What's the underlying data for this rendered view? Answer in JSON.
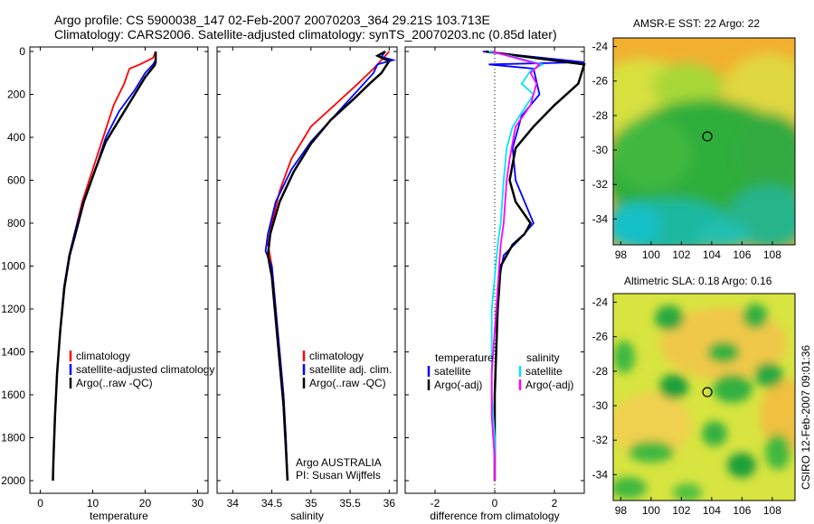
{
  "header": {
    "line1": "Argo profile: CS 5900038_147 02-Feb-2007 20070203_364 29.21S 103.713E",
    "line2": "Climatology: CARS2006. Satellite-adjusted climatology: synTS_20070203.nc (0.85d later)"
  },
  "side_label": "CSIRO 12-Feb-2007 09:01:36",
  "colors": {
    "climatology": "#ff0000",
    "satellite": "#0000ff",
    "argo": "#000000",
    "sal_satellite": "#00e5ff",
    "sal_argo": "#ff00ff",
    "ocean_green": "#22aa33",
    "warm_yellow": "#f0e050"
  },
  "chart_data": [
    {
      "type": "line",
      "xlabel": "temperature",
      "xticks": [
        0,
        10,
        20,
        30
      ],
      "xlim": [
        -2,
        32
      ],
      "ylim": [
        0,
        2050
      ],
      "yticks": [
        0,
        200,
        400,
        600,
        800,
        1000,
        1200,
        1400,
        1600,
        1800,
        2000
      ],
      "legend": [
        "climatology",
        "satellite-adjusted climatology",
        "Argo(..raw -QC)"
      ],
      "series": [
        {
          "name": "climatology",
          "color": "#ff0000",
          "points": [
            [
              22,
              0
            ],
            [
              21.5,
              30
            ],
            [
              19,
              60
            ],
            [
              17,
              80
            ],
            [
              16,
              150
            ],
            [
              14,
              250
            ],
            [
              12,
              400
            ],
            [
              10,
              550
            ],
            [
              8,
              700
            ],
            [
              6.5,
              850
            ],
            [
              5.5,
              950
            ],
            [
              4.5,
              1100
            ],
            [
              3.8,
              1300
            ],
            [
              3.2,
              1500
            ],
            [
              2.8,
              1700
            ],
            [
              2.5,
              1900
            ],
            [
              2.4,
              2000
            ]
          ]
        },
        {
          "name": "satellite-adjusted climatology",
          "color": "#0000ff",
          "points": [
            [
              22,
              0
            ],
            [
              22,
              40
            ],
            [
              21.5,
              60
            ],
            [
              20,
              100
            ],
            [
              18,
              180
            ],
            [
              15,
              280
            ],
            [
              12.5,
              400
            ],
            [
              10.5,
              550
            ],
            [
              8.2,
              700
            ],
            [
              6.5,
              850
            ],
            [
              5.5,
              950
            ],
            [
              4.5,
              1100
            ],
            [
              3.8,
              1300
            ],
            [
              3.2,
              1500
            ],
            [
              2.8,
              1700
            ],
            [
              2.5,
              1900
            ],
            [
              2.4,
              2000
            ]
          ]
        },
        {
          "name": "Argo(..raw -QC)",
          "color": "#000000",
          "points": [
            [
              22,
              0
            ],
            [
              22,
              50
            ],
            [
              21.8,
              65
            ],
            [
              20,
              120
            ],
            [
              18,
              200
            ],
            [
              15.5,
              300
            ],
            [
              12.5,
              420
            ],
            [
              10.5,
              550
            ],
            [
              8.3,
              700
            ],
            [
              6.7,
              850
            ],
            [
              5.6,
              950
            ],
            [
              4.6,
              1100
            ],
            [
              3.8,
              1300
            ],
            [
              3.2,
              1500
            ],
            [
              2.8,
              1700
            ],
            [
              2.5,
              1900
            ],
            [
              2.4,
              2000
            ]
          ]
        }
      ]
    },
    {
      "type": "line",
      "xlabel": "salinity",
      "xticks": [
        34,
        34.5,
        35,
        35.5,
        36
      ],
      "xlim": [
        33.8,
        36.1
      ],
      "ylim": [
        0,
        2050
      ],
      "legend": [
        "climatology",
        "satellite adj. clim.",
        "Argo(..raw -QC)"
      ],
      "annotation": [
        "Argo AUSTRALIA",
        "PI: Susan Wijffels"
      ],
      "series": [
        {
          "name": "climatology",
          "color": "#ff0000",
          "points": [
            [
              36,
              0
            ],
            [
              35.9,
              40
            ],
            [
              35.8,
              80
            ],
            [
              35.6,
              150
            ],
            [
              35.3,
              250
            ],
            [
              35.0,
              350
            ],
            [
              34.75,
              500
            ],
            [
              34.6,
              650
            ],
            [
              34.5,
              800
            ],
            [
              34.45,
              900
            ],
            [
              34.5,
              1000
            ],
            [
              34.55,
              1200
            ],
            [
              34.6,
              1400
            ],
            [
              34.65,
              1600
            ],
            [
              34.68,
              1800
            ],
            [
              34.7,
              2000
            ]
          ]
        },
        {
          "name": "satellite adj. clim.",
          "color": "#0000ff",
          "points": [
            [
              35.95,
              0
            ],
            [
              35.9,
              25
            ],
            [
              36.05,
              40
            ],
            [
              35.85,
              60
            ],
            [
              35.8,
              100
            ],
            [
              35.6,
              180
            ],
            [
              35.3,
              300
            ],
            [
              35.0,
              420
            ],
            [
              34.75,
              550
            ],
            [
              34.55,
              700
            ],
            [
              34.45,
              850
            ],
            [
              34.42,
              930
            ],
            [
              34.5,
              1000
            ],
            [
              34.55,
              1200
            ],
            [
              34.6,
              1400
            ],
            [
              34.65,
              1600
            ],
            [
              34.68,
              1800
            ],
            [
              34.7,
              2000
            ]
          ]
        },
        {
          "name": "Argo(..raw -QC)",
          "color": "#000000",
          "points": [
            [
              35.95,
              0
            ],
            [
              35.85,
              20
            ],
            [
              36.0,
              45
            ],
            [
              35.9,
              100
            ],
            [
              35.75,
              150
            ],
            [
              35.55,
              220
            ],
            [
              35.25,
              320
            ],
            [
              35.0,
              430
            ],
            [
              34.78,
              560
            ],
            [
              34.6,
              700
            ],
            [
              34.48,
              850
            ],
            [
              34.45,
              950
            ],
            [
              34.5,
              1050
            ],
            [
              34.55,
              1250
            ],
            [
              34.6,
              1450
            ],
            [
              34.65,
              1650
            ],
            [
              34.68,
              1850
            ],
            [
              34.7,
              2000
            ]
          ]
        }
      ]
    },
    {
      "type": "line",
      "xlabel": "difference from climatology",
      "xticks": [
        -2,
        0,
        2
      ],
      "xlim": [
        -3,
        3
      ],
      "ylim": [
        0,
        2050
      ],
      "legend_headers": [
        "temperature",
        "salinity"
      ],
      "legend": [
        "satellite",
        "Argo(-adj)",
        "satellite",
        "Argo(-adj)"
      ],
      "series": [
        {
          "name": "satellite",
          "color": "#0000ff",
          "points": [
            [
              -0.4,
              0
            ],
            [
              3,
              50
            ],
            [
              -0.2,
              60
            ],
            [
              1.3,
              80
            ],
            [
              1.5,
              200
            ],
            [
              0.9,
              300
            ],
            [
              0.6,
              450
            ],
            [
              0.7,
              600
            ],
            [
              1.0,
              700
            ],
            [
              1.3,
              800
            ],
            [
              0.8,
              880
            ],
            [
              0.3,
              950
            ],
            [
              0.1,
              1100
            ],
            [
              0.05,
              1400
            ],
            [
              0,
              1600
            ],
            [
              0,
              1800
            ],
            [
              0,
              2000
            ]
          ]
        },
        {
          "name": "Argo(-adj)",
          "color": "#000000",
          "points": [
            [
              -0.3,
              0
            ],
            [
              3,
              60
            ],
            [
              2.8,
              150
            ],
            [
              2.0,
              250
            ],
            [
              1.3,
              350
            ],
            [
              0.7,
              450
            ],
            [
              0.5,
              600
            ],
            [
              0.7,
              700
            ],
            [
              1.2,
              800
            ],
            [
              1.0,
              850
            ],
            [
              0.6,
              900
            ],
            [
              0.2,
              1000
            ],
            [
              0.1,
              1200
            ],
            [
              0.05,
              1400
            ],
            [
              0,
              1600
            ],
            [
              0,
              1800
            ],
            [
              0,
              2000
            ]
          ]
        },
        {
          "name": "satellite",
          "color": "#00e5ff",
          "points": [
            [
              -0.2,
              0
            ],
            [
              0.5,
              20
            ],
            [
              1.6,
              60
            ],
            [
              1.2,
              90
            ],
            [
              0.9,
              150
            ],
            [
              1.3,
              200
            ],
            [
              0.6,
              350
            ],
            [
              0.4,
              450
            ],
            [
              0.3,
              600
            ],
            [
              0.2,
              800
            ],
            [
              0.1,
              900
            ],
            [
              -0.1,
              1200
            ],
            [
              -0.1,
              1400
            ],
            [
              -0.1,
              1600
            ],
            [
              0,
              1800
            ],
            [
              0,
              2000
            ]
          ]
        },
        {
          "name": "Argo(-adj)",
          "color": "#ff00ff",
          "points": [
            [
              -0.1,
              0
            ],
            [
              1.5,
              60
            ],
            [
              1.2,
              100
            ],
            [
              1.4,
              150
            ],
            [
              1.2,
              250
            ],
            [
              0.7,
              350
            ],
            [
              0.5,
              500
            ],
            [
              0.4,
              600
            ],
            [
              0.3,
              800
            ],
            [
              0.2,
              900
            ],
            [
              0.1,
              1100
            ],
            [
              0,
              1300
            ],
            [
              -0.1,
              1500
            ],
            [
              -0.1,
              1700
            ],
            [
              0,
              1900
            ],
            [
              0,
              2000
            ]
          ]
        }
      ]
    },
    {
      "type": "heatmap",
      "title": "AMSR-E SST: 22  Argo: 22",
      "xticks": [
        98,
        100,
        102,
        104,
        106,
        108
      ],
      "yticks": [
        -24,
        -26,
        -28,
        -30,
        -32,
        -34
      ],
      "xlim": [
        97.5,
        109.5
      ],
      "ylim": [
        -35.5,
        -23.5
      ],
      "marker": [
        103.713,
        -29.21
      ]
    },
    {
      "type": "heatmap",
      "title": "Altimetric SLA: 0.18  Argo: 0.16",
      "xticks": [
        98,
        100,
        102,
        104,
        106,
        108
      ],
      "yticks": [
        -24,
        -26,
        -28,
        -30,
        -32,
        -34
      ],
      "xlim": [
        97.5,
        109.5
      ],
      "ylim": [
        -35.5,
        -23.5
      ],
      "marker": [
        103.713,
        -29.21
      ]
    }
  ]
}
